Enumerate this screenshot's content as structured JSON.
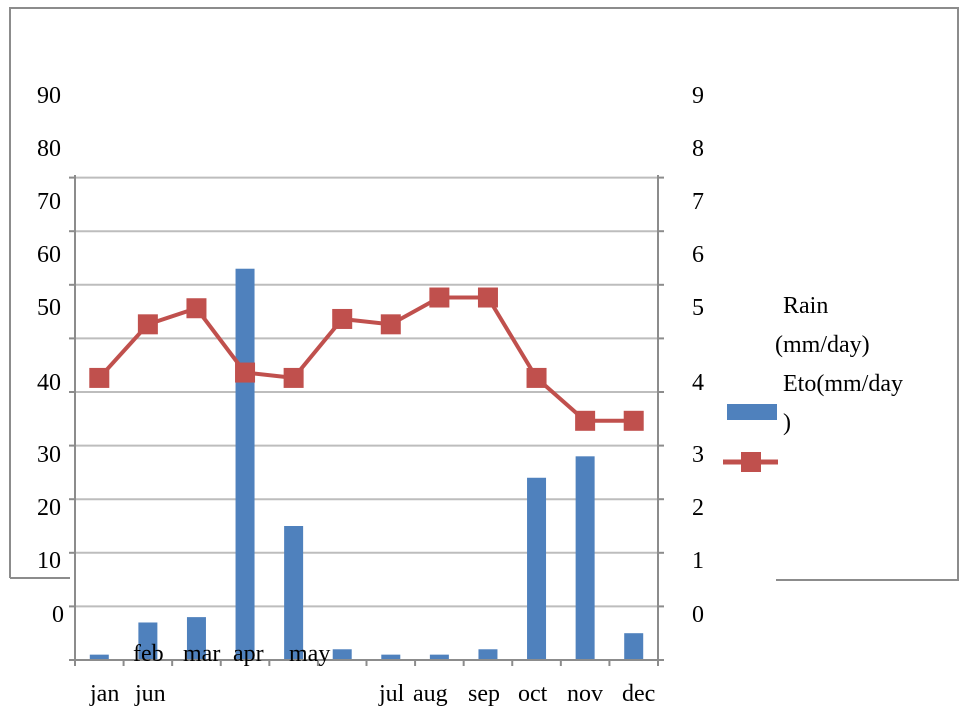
{
  "chart_data": {
    "type": "bar",
    "categories": [
      "jan",
      "feb",
      "mar",
      "apr",
      "may",
      "jun",
      "jul",
      "aug",
      "sep",
      "oct",
      "nov",
      "dec"
    ],
    "series": [
      {
        "name": "Rain (mm/day)",
        "type": "bar",
        "axis": "left",
        "color": "#4f81bd",
        "values": [
          1,
          7,
          8,
          73,
          25,
          2,
          1,
          1,
          2,
          34,
          38,
          5
        ]
      },
      {
        "name": "Eto(mm/day)",
        "type": "line",
        "axis": "right",
        "color": "#c0504d",
        "values": [
          5.3,
          6.3,
          6.6,
          5.4,
          5.3,
          6.4,
          6.3,
          6.8,
          6.8,
          5.3,
          4.5,
          4.5
        ]
      }
    ],
    "left_axis": {
      "ticks": [
        "90",
        "80",
        "70",
        "60",
        "50",
        "40",
        "30",
        "20",
        "10",
        "0"
      ]
    },
    "right_axis": {
      "ticks": [
        "9",
        "8",
        "7",
        "6",
        "5",
        "4",
        "3",
        "2",
        "1",
        "0"
      ]
    },
    "x_tick_labels": [
      {
        "text": "jan"
      },
      {
        "text": "feb"
      },
      {
        "text": "mar"
      },
      {
        "text": "apr"
      },
      {
        "text": "may"
      },
      {
        "text": "jun"
      },
      {
        "text": "jul"
      },
      {
        "text": "aug"
      },
      {
        "text": "sep"
      },
      {
        "text": "oct"
      },
      {
        "text": "nov"
      },
      {
        "text": "dec"
      }
    ],
    "legend": {
      "position": "right",
      "entries": [
        "Rain (mm/day)",
        "Eto(mm/day)"
      ],
      "lines": [
        "Rain",
        "(mm/day)",
        "Eto(mm/day",
        ")"
      ]
    },
    "grid": true,
    "title": "",
    "xlabel": "",
    "ylabel": ""
  }
}
